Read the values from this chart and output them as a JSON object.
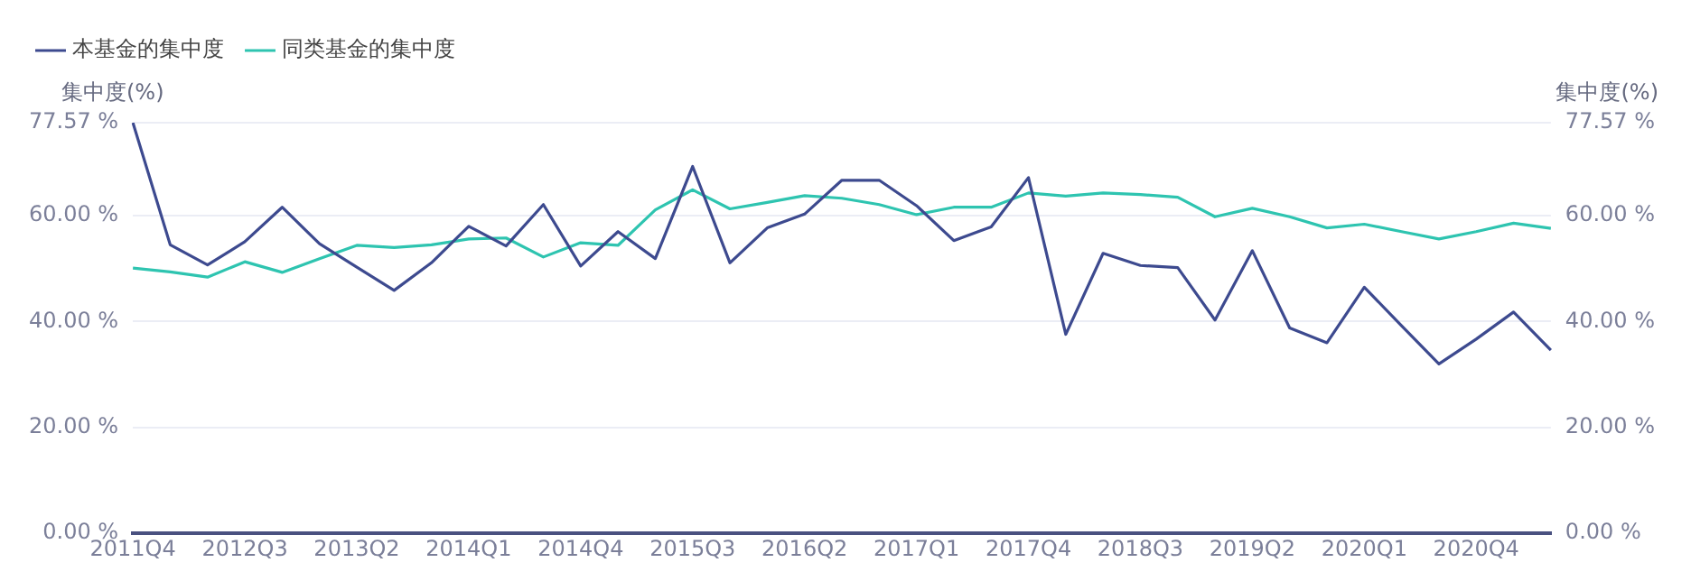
{
  "chart_data": {
    "type": "line",
    "categories": [
      "2011Q4",
      null,
      null,
      "2012Q3",
      null,
      null,
      "2013Q2",
      null,
      null,
      "2014Q1",
      null,
      null,
      "2014Q4",
      null,
      null,
      "2015Q3",
      null,
      null,
      "2016Q2",
      null,
      null,
      "2017Q1",
      null,
      null,
      "2017Q4",
      null,
      null,
      "2018Q3",
      null,
      null,
      "2019Q2",
      null,
      null,
      "2020Q1",
      null,
      null,
      "2020Q4",
      null,
      null
    ],
    "series": [
      {
        "name": "本基金的集中度",
        "color": "#3d4a8f",
        "values": [
          77.57,
          54.5,
          50.7,
          55.1,
          61.6,
          54.7,
          50.3,
          45.9,
          51.1,
          58.0,
          54.3,
          62.1,
          50.5,
          57.0,
          51.9,
          69.3,
          51.1,
          57.7,
          60.3,
          66.7,
          66.7,
          61.9,
          55.3,
          57.9,
          67.2,
          37.6,
          52.9,
          50.6,
          50.2,
          40.3,
          53.4,
          38.8,
          36.0,
          46.5,
          39.2,
          32.0,
          36.7,
          41.8,
          34.6
        ]
      },
      {
        "name": "同类基金的集中度",
        "color": "#2ec4b0",
        "values": [
          50.1,
          49.4,
          48.4,
          51.3,
          49.3,
          51.9,
          54.4,
          54.0,
          54.5,
          55.6,
          55.8,
          52.2,
          54.9,
          54.4,
          61.1,
          64.9,
          61.3,
          62.5,
          63.8,
          63.3,
          62.1,
          60.2,
          61.6,
          61.6,
          64.3,
          63.7,
          64.3,
          64.0,
          63.5,
          59.8,
          61.4,
          59.8,
          57.7,
          58.4,
          57.0,
          55.6,
          57.0,
          58.6,
          57.6
        ]
      }
    ],
    "ylabel": "集中度(%)",
    "y2label": "集中度(%)",
    "ylim": [
      0,
      77.57
    ],
    "yticks": [
      {
        "value": 0,
        "label": "0.00 %"
      },
      {
        "value": 20,
        "label": "20.00 %"
      },
      {
        "value": 40,
        "label": "40.00 %"
      },
      {
        "value": 60,
        "label": "60.00 %"
      },
      {
        "value": 77.57,
        "label": "77.57 %"
      }
    ],
    "y2lim": [
      0,
      77.57
    ],
    "y2ticks": [
      {
        "value": 0,
        "label": "0.00 %"
      },
      {
        "value": 20,
        "label": "20.00 %"
      },
      {
        "value": 40,
        "label": "40.00 %"
      },
      {
        "value": 60,
        "label": "60.00 %"
      },
      {
        "value": 77.57,
        "label": "77.57 %"
      }
    ],
    "grid": "y",
    "legend": "top left",
    "marker": "none",
    "line_style": "solid"
  }
}
